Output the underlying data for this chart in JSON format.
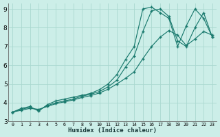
{
  "xlabel": "Humidex (Indice chaleur)",
  "bg_color": "#cceee8",
  "grid_color": "#aad8d0",
  "line_color": "#1a7a6e",
  "xlim": [
    -0.5,
    23.5
  ],
  "ylim": [
    3,
    9.3
  ],
  "xticks": [
    0,
    1,
    2,
    3,
    4,
    5,
    6,
    7,
    8,
    9,
    10,
    11,
    12,
    13,
    14,
    15,
    16,
    17,
    18,
    19,
    20,
    21,
    22,
    23
  ],
  "yticks": [
    3,
    4,
    5,
    6,
    7,
    8,
    9
  ],
  "line1_x": [
    0,
    1,
    2,
    3,
    4,
    5,
    6,
    7,
    8,
    9,
    10,
    11,
    12,
    13,
    14,
    15,
    16,
    17,
    18,
    19,
    20,
    21,
    22,
    23
  ],
  "line1_y": [
    3.5,
    3.7,
    3.8,
    3.55,
    3.9,
    4.1,
    4.2,
    4.3,
    4.4,
    4.5,
    4.7,
    5.0,
    5.5,
    6.3,
    7.0,
    9.0,
    9.1,
    8.8,
    8.5,
    7.0,
    8.1,
    9.0,
    8.5,
    7.5
  ],
  "line2_x": [
    0,
    1,
    2,
    3,
    4,
    5,
    6,
    7,
    8,
    9,
    10,
    11,
    12,
    13,
    14,
    15,
    16,
    17,
    18,
    19,
    20,
    21,
    22,
    23
  ],
  "line2_y": [
    3.5,
    3.65,
    3.75,
    3.6,
    3.85,
    4.0,
    4.1,
    4.2,
    4.35,
    4.45,
    4.6,
    4.85,
    5.2,
    5.9,
    6.5,
    7.8,
    8.9,
    9.0,
    8.6,
    7.3,
    7.0,
    8.0,
    8.8,
    7.5
  ],
  "line3_x": [
    0,
    1,
    2,
    3,
    4,
    5,
    6,
    7,
    8,
    9,
    10,
    11,
    12,
    13,
    14,
    15,
    16,
    17,
    18,
    19,
    20,
    21,
    22,
    23
  ],
  "line3_y": [
    3.5,
    3.6,
    3.7,
    3.65,
    3.8,
    3.95,
    4.05,
    4.15,
    4.28,
    4.38,
    4.52,
    4.72,
    5.0,
    5.3,
    5.65,
    6.35,
    7.0,
    7.5,
    7.85,
    7.6,
    7.05,
    7.4,
    7.8,
    7.6
  ]
}
